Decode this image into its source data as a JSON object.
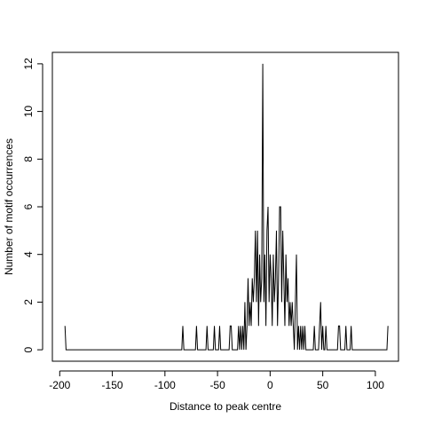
{
  "chart_data": {
    "type": "line",
    "title": "",
    "xlabel": "Distance to peak centre",
    "ylabel": "Number of motif occurrences",
    "xlim": [
      -207,
      122
    ],
    "ylim": [
      -0.48,
      12.48
    ],
    "x_ticks": [
      -200,
      -150,
      -100,
      -50,
      0,
      50,
      100
    ],
    "x_tick_labels": [
      "-200",
      "-150",
      "-100",
      "-50",
      "0",
      "50",
      "100"
    ],
    "y_ticks": [
      0,
      2,
      4,
      6,
      8,
      10,
      12
    ],
    "y_tick_labels": [
      "0",
      "2",
      "4",
      "6",
      "8",
      "10",
      "12"
    ],
    "grid": false,
    "legend": "none",
    "line_color": "#000000",
    "series": [
      {
        "points": [
          [
            -195,
            1
          ],
          [
            -194,
            0
          ],
          [
            -84,
            0
          ],
          [
            -83,
            1
          ],
          [
            -82,
            0
          ],
          [
            -71,
            0
          ],
          [
            -70,
            1
          ],
          [
            -69,
            0
          ],
          [
            -61,
            0
          ],
          [
            -60,
            1
          ],
          [
            -59,
            0
          ],
          [
            -54,
            0
          ],
          [
            -53,
            1
          ],
          [
            -52,
            0
          ],
          [
            -49,
            0
          ],
          [
            -48,
            1
          ],
          [
            -47,
            0
          ],
          [
            -39,
            0
          ],
          [
            -38,
            1
          ],
          [
            -37,
            1
          ],
          [
            -36,
            0
          ],
          [
            -31,
            0
          ],
          [
            -30,
            1
          ],
          [
            -29,
            0
          ],
          [
            -28,
            1
          ],
          [
            -27,
            0
          ],
          [
            -26,
            1
          ],
          [
            -25,
            0
          ],
          [
            -24,
            2
          ],
          [
            -23,
            0
          ],
          [
            -22,
            1
          ],
          [
            -21,
            3
          ],
          [
            -20,
            1
          ],
          [
            -19,
            2
          ],
          [
            -18,
            1
          ],
          [
            -17,
            3
          ],
          [
            -16,
            2
          ],
          [
            -15,
            3
          ],
          [
            -14,
            5
          ],
          [
            -13,
            2
          ],
          [
            -12,
            5
          ],
          [
            -11,
            1
          ],
          [
            -10,
            4
          ],
          [
            -9,
            2
          ],
          [
            -8,
            3
          ],
          [
            -7,
            12
          ],
          [
            -6,
            2
          ],
          [
            -5,
            4
          ],
          [
            -4,
            1
          ],
          [
            -3,
            5
          ],
          [
            -2,
            6
          ],
          [
            -1,
            2
          ],
          [
            0,
            4
          ],
          [
            1,
            3
          ],
          [
            2,
            1
          ],
          [
            3,
            4
          ],
          [
            4,
            2
          ],
          [
            5,
            3
          ],
          [
            6,
            5
          ],
          [
            7,
            1
          ],
          [
            8,
            3
          ],
          [
            9,
            6
          ],
          [
            10,
            6
          ],
          [
            11,
            2
          ],
          [
            12,
            5
          ],
          [
            13,
            3
          ],
          [
            14,
            1
          ],
          [
            15,
            4
          ],
          [
            16,
            2
          ],
          [
            17,
            3
          ],
          [
            18,
            1
          ],
          [
            19,
            2
          ],
          [
            20,
            1
          ],
          [
            21,
            2
          ],
          [
            22,
            1
          ],
          [
            23,
            0
          ],
          [
            24,
            2
          ],
          [
            25,
            4
          ],
          [
            26,
            0
          ],
          [
            27,
            1
          ],
          [
            28,
            0
          ],
          [
            29,
            1
          ],
          [
            30,
            0
          ],
          [
            31,
            1
          ],
          [
            32,
            0
          ],
          [
            33,
            1
          ],
          [
            34,
            0
          ],
          [
            41,
            0
          ],
          [
            42,
            1
          ],
          [
            43,
            0
          ],
          [
            46,
            0
          ],
          [
            47,
            1
          ],
          [
            48,
            2
          ],
          [
            49,
            0
          ],
          [
            50,
            1
          ],
          [
            51,
            0
          ],
          [
            52,
            0
          ],
          [
            53,
            1
          ],
          [
            54,
            0
          ],
          [
            64,
            0
          ],
          [
            65,
            1
          ],
          [
            66,
            1
          ],
          [
            67,
            0
          ],
          [
            71,
            0
          ],
          [
            72,
            1
          ],
          [
            73,
            0
          ],
          [
            76,
            0
          ],
          [
            77,
            1
          ],
          [
            78,
            0
          ],
          [
            111,
            0
          ],
          [
            112,
            1
          ]
        ]
      }
    ]
  }
}
